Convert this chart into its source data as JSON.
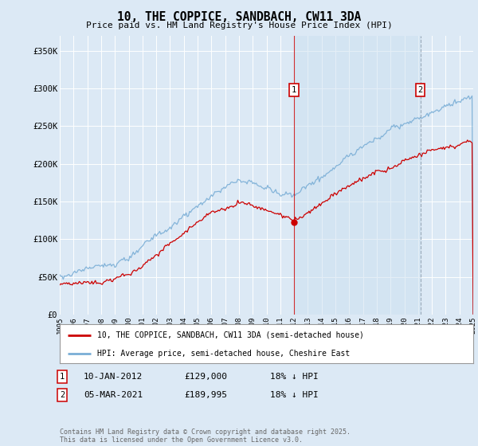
{
  "title": "10, THE COPPICE, SANDBACH, CW11 3DA",
  "subtitle": "Price paid vs. HM Land Registry's House Price Index (HPI)",
  "ylim": [
    0,
    370000
  ],
  "yticks": [
    0,
    50000,
    100000,
    150000,
    200000,
    250000,
    300000,
    350000
  ],
  "ytick_labels": [
    "£0",
    "£50K",
    "£100K",
    "£150K",
    "£200K",
    "£250K",
    "£300K",
    "£350K"
  ],
  "background_color": "#dce9f5",
  "plot_bg_color": "#dce9f5",
  "grid_color": "#ffffff",
  "red_line_color": "#cc0000",
  "blue_line_color": "#7aaed6",
  "shade_color": "#ddeeff",
  "marker1_date": "10-JAN-2012",
  "marker1_price": "£129,000",
  "marker1_hpi": "18% ↓ HPI",
  "marker2_date": "05-MAR-2021",
  "marker2_price": "£189,995",
  "marker2_hpi": "18% ↓ HPI",
  "legend_line1": "10, THE COPPICE, SANDBACH, CW11 3DA (semi-detached house)",
  "legend_line2": "HPI: Average price, semi-detached house, Cheshire East",
  "footer": "Contains HM Land Registry data © Crown copyright and database right 2025.\nThis data is licensed under the Open Government Licence v3.0.",
  "start_year": 1995,
  "end_year": 2025,
  "n_months": 361
}
